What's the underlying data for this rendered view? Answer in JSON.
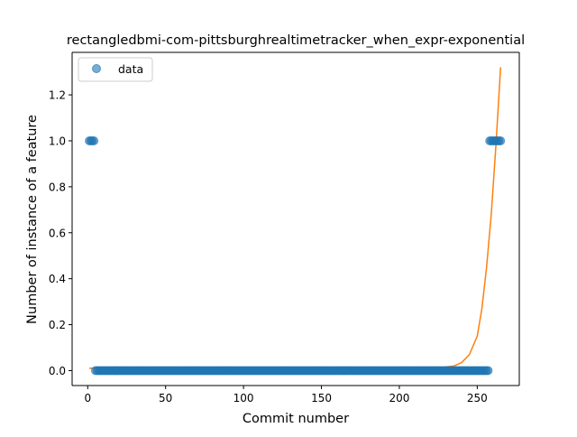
{
  "chart_data": {
    "type": "scatter",
    "title": "rectangledbmi-com-pittsburghrealtimetracker_when_expr-exponential",
    "xlabel": "Commit number",
    "ylabel": "Number of instance of a feature",
    "xlim": [
      -10,
      277
    ],
    "ylim": [
      -0.065,
      1.385
    ],
    "xticks": [
      0,
      50,
      100,
      150,
      200,
      250
    ],
    "yticks": [
      0.0,
      0.2,
      0.4,
      0.6,
      0.8,
      1.0,
      1.2
    ],
    "xtick_labels": [
      "0",
      "50",
      "100",
      "150",
      "200",
      "250"
    ],
    "ytick_labels": [
      "0.0",
      "0.2",
      "0.4",
      "0.6",
      "0.8",
      "1.0",
      "1.2"
    ],
    "grid": false,
    "legend": {
      "location": "upper-left",
      "entries": [
        "data"
      ]
    },
    "series": [
      {
        "name": "data",
        "kind": "points",
        "color": "#1f77b4",
        "points": [
          {
            "x_start": 1,
            "x_end": 4,
            "y": 1.0
          },
          {
            "x_start": 5,
            "x_end": 257,
            "y": 0.0
          },
          {
            "x_start": 258,
            "x_end": 265,
            "y": 1.0
          }
        ]
      },
      {
        "kind": "fit-curve",
        "color": "#ff7f0e",
        "x_range": [
          1,
          265
        ],
        "samples": [
          [
            1,
            0.01
          ],
          [
            100,
            0.01
          ],
          [
            200,
            0.01
          ],
          [
            225,
            0.012
          ],
          [
            235,
            0.02
          ],
          [
            240,
            0.035
          ],
          [
            245,
            0.07
          ],
          [
            250,
            0.15
          ],
          [
            253,
            0.27
          ],
          [
            256,
            0.45
          ],
          [
            259,
            0.68
          ],
          [
            262,
            0.98
          ],
          [
            265,
            1.32
          ]
        ]
      }
    ]
  }
}
